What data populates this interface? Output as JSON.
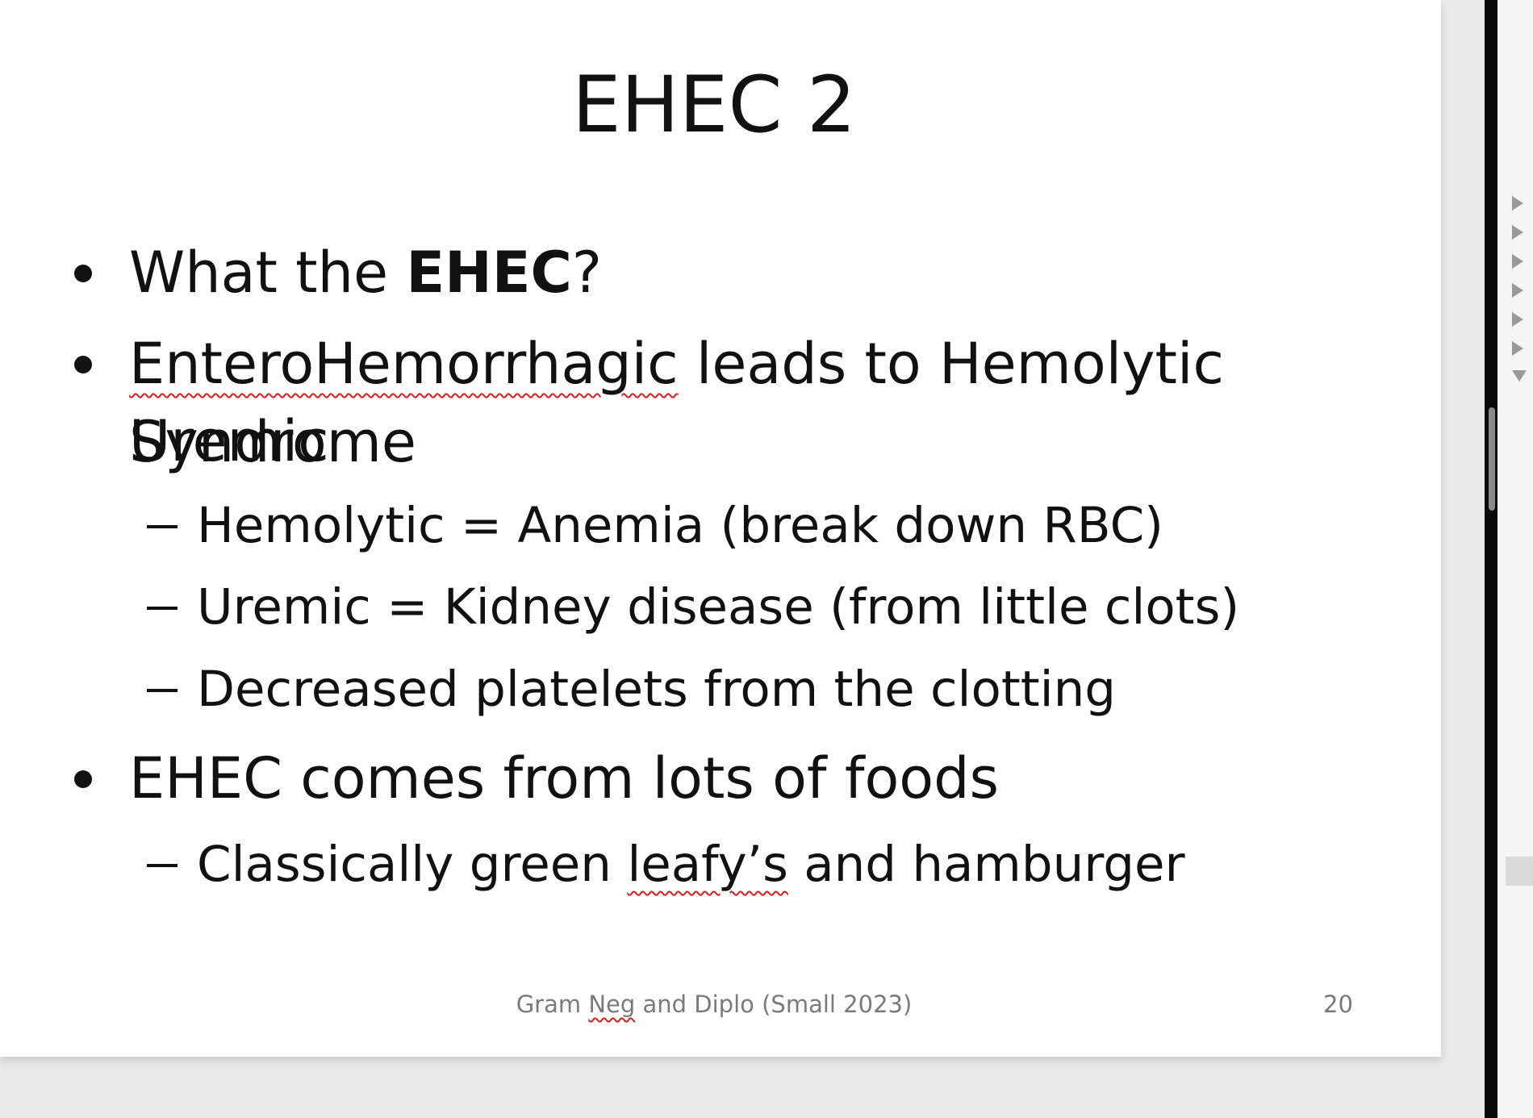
{
  "slide": {
    "title": "EHEC 2",
    "bullets": {
      "b1": {
        "pre": "What the ",
        "bold": "EHEC",
        "post": "?"
      },
      "b2": {
        "word1": "EnteroHemorrhagic",
        "rest1": " leads to Hemolytic Uremic",
        "line2": "Syndrome"
      },
      "b3": {
        "text": "EHEC comes from lots of foods"
      }
    },
    "subs": {
      "s1": "Hemolytic = Anemia (break down RBC)",
      "s2": "Uremic = Kidney disease (from little clots)",
      "s3": "Decreased platelets from the clotting",
      "s4": {
        "pre": "Classically green ",
        "word": "leafy’s",
        "post": " and hamburger"
      }
    },
    "footer": {
      "pre": "Gram ",
      "word": "Neg",
      "post": " and Diplo (Small 2023)"
    },
    "page_number": "20"
  }
}
